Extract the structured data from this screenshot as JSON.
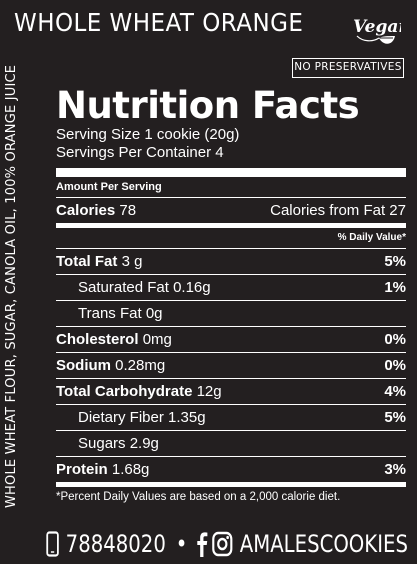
{
  "product_title": "WHOLE WHEAT ORANGE",
  "vegan_badge": "Vegan",
  "no_preservatives": "NO PRESERVATIVES",
  "ingredients": "WHOLE WHEAT FLOUR, SUGAR, CANOLA OIL, 100% ORANGE JUICE",
  "panel": {
    "heading": "Nutrition Facts",
    "serving_size": "Serving Size 1 cookie (20g)",
    "servings_per_container": "Servings Per Container 4",
    "amount_per_serving": "Amount Per Serving",
    "calories_label": "Calories",
    "calories_value": "78",
    "calories_from_fat": "Calories from Fat 27",
    "daily_value_header": "% Daily Value*",
    "rows": [
      {
        "label": "Total Fat",
        "amount": "3 g",
        "pct": "5%"
      },
      {
        "label": "Saturated Fat",
        "amount": "0.16g",
        "pct": "1%"
      },
      {
        "label": "Trans Fat",
        "amount": "0g",
        "pct": ""
      },
      {
        "label": "Cholesterol",
        "amount": "0mg",
        "pct": "0%"
      },
      {
        "label": "Sodium",
        "amount": "0.28mg",
        "pct": "0%"
      },
      {
        "label": "Total Carbohydrate",
        "amount": "12g",
        "pct": "4%"
      },
      {
        "label": "Dietary Fiber",
        "amount": "1.35g",
        "pct": "5%"
      },
      {
        "label": "Sugars",
        "amount": "2.9g",
        "pct": ""
      },
      {
        "label": "Protein",
        "amount": "1.68g",
        "pct": "3%"
      }
    ],
    "footnote": "*Percent Daily Values are based on a 2,000 calorie diet."
  },
  "contact": {
    "phone": "78848020",
    "separator": "•",
    "social_handle": "AMALESCOOKIES"
  }
}
